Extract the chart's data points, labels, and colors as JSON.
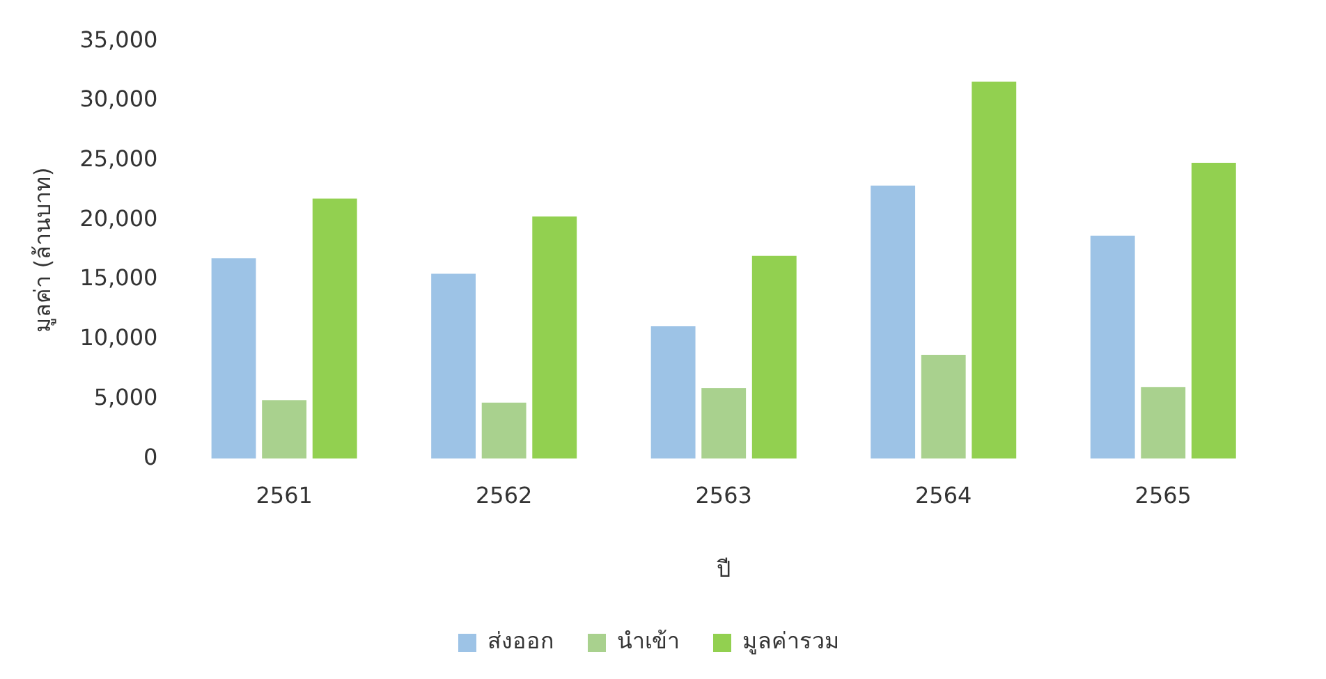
{
  "chart_data": {
    "type": "bar",
    "xlabel": "ปี",
    "ylabel": "มูลค่า (ล้านบาท)",
    "categories": [
      "2561",
      "2562",
      "2563",
      "2564",
      "2565"
    ],
    "series": [
      {
        "name": "ส่งออก",
        "color": "#9dc3e6",
        "values": [
          16800,
          15500,
          11100,
          22900,
          18700
        ]
      },
      {
        "name": "นำเข้า",
        "color": "#a9d18e",
        "values": [
          4900,
          4700,
          5900,
          8700,
          6000
        ]
      },
      {
        "name": "มูลค่ารวม",
        "color": "#92d050",
        "values": [
          21800,
          20300,
          17000,
          31600,
          24800
        ]
      }
    ],
    "ylim": [
      0,
      35000
    ],
    "yticks": [
      {
        "value": 0,
        "label": "0"
      },
      {
        "value": 5000,
        "label": "5,000"
      },
      {
        "value": 10000,
        "label": "10,000"
      },
      {
        "value": 15000,
        "label": "15,000"
      },
      {
        "value": 20000,
        "label": "20,000"
      },
      {
        "value": 25000,
        "label": "25,000"
      },
      {
        "value": 30000,
        "label": "30,000"
      },
      {
        "value": 35000,
        "label": "35,000"
      }
    ],
    "grid": false,
    "legend": "bottom"
  }
}
